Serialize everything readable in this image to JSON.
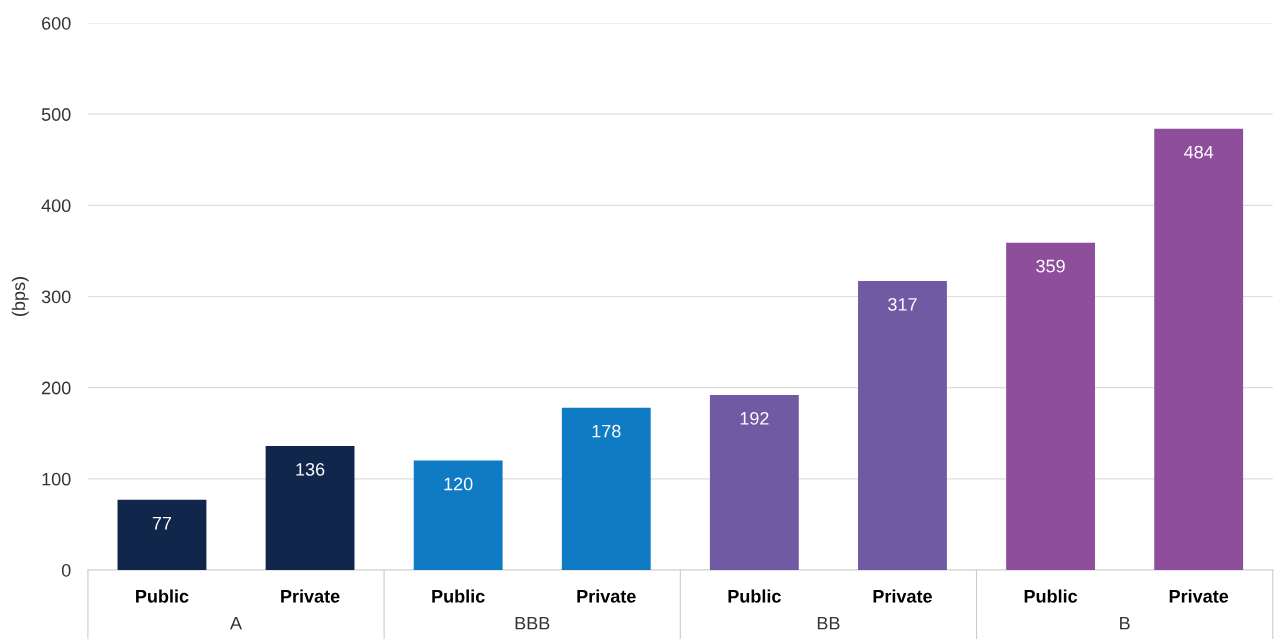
{
  "chart_data": {
    "type": "bar",
    "ylabel": "(bps)",
    "categories": [
      "Public",
      "Private",
      "Public",
      "Private",
      "Public",
      "Private",
      "Public",
      "Private"
    ],
    "values": [
      77,
      136,
      120,
      178,
      192,
      317,
      359,
      484
    ],
    "colors": [
      "#10264a",
      "#10264a",
      "#0f7bc4",
      "#0f7bc4",
      "#7159a3",
      "#7159a3",
      "#8e4e9c",
      "#8e4e9c"
    ],
    "annotations": [
      "A",
      "BBB",
      "BB",
      "B"
    ],
    "ylim": [
      0,
      600
    ],
    "yticks": [
      0,
      100,
      200,
      300,
      400,
      500,
      600
    ],
    "grid": "y",
    "data_labels": true,
    "legend": false
  }
}
